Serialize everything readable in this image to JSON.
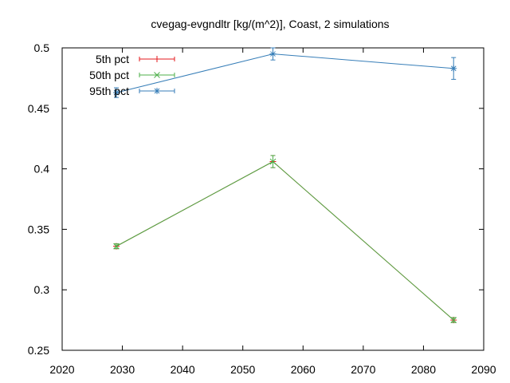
{
  "chart_data": {
    "type": "line",
    "title": "cvegag-evgndltr [kg/(m^2)], Coast, 2 simulations",
    "xlabel": "",
    "ylabel": "",
    "xlim": [
      2020,
      2090
    ],
    "ylim": [
      0.25,
      0.5
    ],
    "xticks": [
      "2020",
      "2030",
      "2040",
      "2050",
      "2060",
      "2070",
      "2080",
      "2090"
    ],
    "yticks": [
      "0.25",
      "0.3",
      "0.35",
      "0.4",
      "0.45",
      "0.5"
    ],
    "grid": false,
    "legend_position": "top-left",
    "series": [
      {
        "name": "5th pct",
        "color": "#e41a1c",
        "marker": "plus",
        "points": [
          {
            "x": 2029,
            "y": 0.336,
            "err": 0.002
          },
          {
            "x": 2055,
            "y": 0.406,
            "err": 0.005
          },
          {
            "x": 2085,
            "y": 0.275,
            "err": 0.002
          }
        ]
      },
      {
        "name": "50th pct",
        "color": "#4daf4a",
        "marker": "cross",
        "points": [
          {
            "x": 2029,
            "y": 0.336,
            "err": 0.002
          },
          {
            "x": 2055,
            "y": 0.406,
            "err": 0.005
          },
          {
            "x": 2085,
            "y": 0.275,
            "err": 0.002
          }
        ]
      },
      {
        "name": "95th pct",
        "color": "#377eb8",
        "marker": "star",
        "points": [
          {
            "x": 2029,
            "y": 0.463,
            "err": 0.004
          },
          {
            "x": 2055,
            "y": 0.495,
            "err": 0.005
          },
          {
            "x": 2085,
            "y": 0.483,
            "err": 0.009
          }
        ]
      }
    ]
  }
}
